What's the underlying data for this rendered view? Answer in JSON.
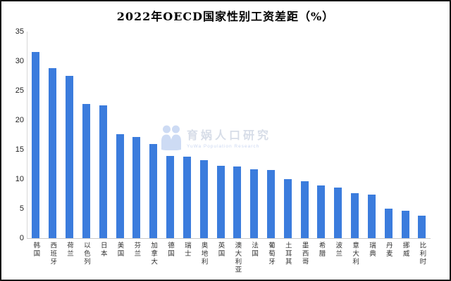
{
  "chart_data": {
    "type": "bar",
    "title": "2022年OECD国家性别工资差距（%）",
    "categories": [
      "韩国",
      "西班牙",
      "荷兰",
      "以色列",
      "日本",
      "美国",
      "芬兰",
      "加拿大",
      "德国",
      "瑞士",
      "奥地利",
      "英国",
      "澳大利亚",
      "法国",
      "葡萄牙",
      "土耳其",
      "墨西哥",
      "希腊",
      "波兰",
      "意大利",
      "瑞典",
      "丹麦",
      "挪威",
      "比利时"
    ],
    "values": [
      31.5,
      28.8,
      27.5,
      22.7,
      22.5,
      17.6,
      17.1,
      16.0,
      13.9,
      13.8,
      13.2,
      12.3,
      12.2,
      11.7,
      11.6,
      10.0,
      9.6,
      8.9,
      8.6,
      7.6,
      7.4,
      5.0,
      4.7,
      3.8
    ],
    "xlabel": "",
    "ylabel": "",
    "ylim": [
      0,
      35
    ],
    "yticks": [
      0,
      5,
      10,
      15,
      20,
      25,
      30,
      35
    ],
    "grid": false,
    "legend": "none",
    "bar_color": "#3b7cdd"
  },
  "watermark": {
    "brand": "育娲人口研究",
    "subtext": "YuWa Population Research",
    "icon": "people-logo-icon",
    "icon_color": "#cddbf4",
    "text_color": "#d7dde8"
  },
  "page": {
    "background": "#ffffff",
    "border_color": "#141414"
  }
}
